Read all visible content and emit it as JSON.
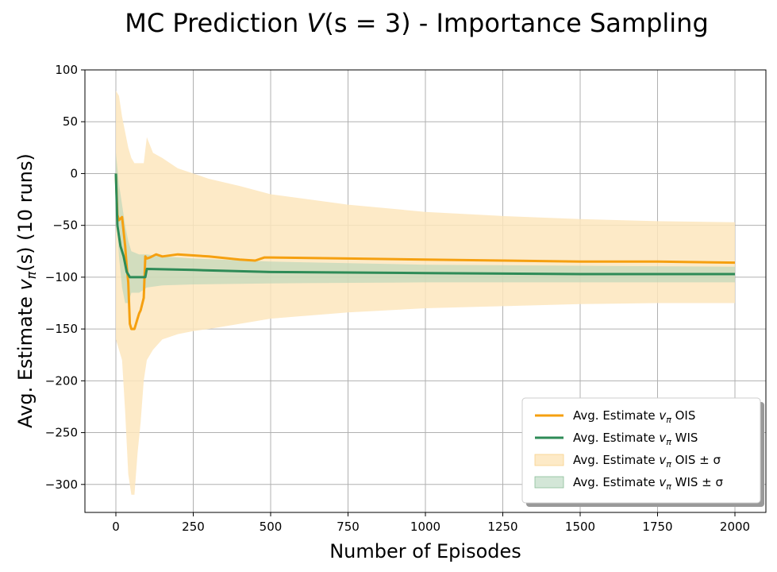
{
  "chart_data": {
    "type": "line",
    "title_parts": {
      "pre": "MC Prediction ",
      "var": "V",
      "args": "(s = 3)",
      "post": " - Importance Sampling"
    },
    "xlabel": "Number of Episodes",
    "ylabel_parts": {
      "pre": "Avg. Estimate ",
      "var": "v",
      "sub": "π",
      "post": "(s) (10 runs)"
    },
    "xlim": [
      -100,
      2100
    ],
    "ylim": [
      -327,
      100
    ],
    "x_ticks": [
      0,
      250,
      500,
      750,
      1000,
      1250,
      1500,
      1750,
      2000
    ],
    "x_tick_labels": [
      "0",
      "250",
      "500",
      "750",
      "1000",
      "1250",
      "1500",
      "1750",
      "2000"
    ],
    "y_ticks": [
      100,
      50,
      0,
      -50,
      -100,
      -150,
      -200,
      -250,
      -300
    ],
    "y_tick_labels": [
      "100",
      "50",
      "0",
      "−50",
      "−100",
      "−150",
      "−200",
      "−250",
      "−300"
    ],
    "grid": true,
    "legend_position": "lower-right",
    "colors": {
      "ois": "#f5a010",
      "wis": "#2e8b57",
      "ois_band": "#fde6bd",
      "wis_band": "#aed2b6"
    },
    "series": [
      {
        "name": "Avg. Estimate v_π OIS",
        "legend": {
          "pre": "Avg. Estimate ",
          "var": "v",
          "sub": "π",
          "post": " OIS"
        },
        "kind": "line",
        "x": [
          0,
          5,
          10,
          20,
          30,
          35,
          40,
          45,
          50,
          60,
          70,
          75,
          80,
          90,
          95,
          100,
          110,
          130,
          150,
          200,
          250,
          300,
          400,
          450,
          480,
          500,
          750,
          1000,
          1250,
          1500,
          1750,
          2000
        ],
        "y": [
          0,
          -40,
          -45,
          -42,
          -70,
          -90,
          -105,
          -145,
          -150,
          -150,
          -140,
          -135,
          -132,
          -120,
          -80,
          -82,
          -81,
          -78,
          -80,
          -78,
          -79,
          -80,
          -83,
          -84,
          -81,
          -81,
          -82,
          -83,
          -84,
          -85,
          -85,
          -86
        ]
      },
      {
        "name": "Avg. Estimate v_π WIS",
        "legend": {
          "pre": "Avg. Estimate ",
          "var": "v",
          "sub": "π",
          "post": " WIS"
        },
        "kind": "line",
        "x": [
          0,
          5,
          15,
          25,
          35,
          45,
          55,
          95,
          100,
          250,
          500,
          1000,
          1500,
          2000
        ],
        "y": [
          0,
          -50,
          -70,
          -80,
          -95,
          -100,
          -100,
          -100,
          -92,
          -93,
          -95,
          -96,
          -97,
          -97
        ]
      },
      {
        "name": "Avg. Estimate v_π OIS ± σ",
        "legend": {
          "pre": "Avg. Estimate ",
          "var": "v",
          "sub": "π",
          "post": " OIS ± σ"
        },
        "kind": "band",
        "x": [
          0,
          10,
          20,
          30,
          40,
          50,
          60,
          70,
          80,
          90,
          100,
          120,
          150,
          200,
          250,
          300,
          400,
          500,
          750,
          1000,
          1250,
          1500,
          1750,
          2000
        ],
        "upper": [
          80,
          75,
          55,
          40,
          25,
          15,
          10,
          10,
          10,
          10,
          35,
          20,
          15,
          5,
          0,
          -5,
          -12,
          -20,
          -30,
          -37,
          -41,
          -44,
          -46,
          -47
        ],
        "lower": [
          -160,
          -170,
          -180,
          -230,
          -290,
          -310,
          -310,
          -270,
          -240,
          -200,
          -180,
          -170,
          -160,
          -155,
          -152,
          -150,
          -145,
          -140,
          -134,
          -130,
          -128,
          -126,
          -125,
          -125
        ]
      },
      {
        "name": "Avg. Estimate v_π WIS ± σ",
        "legend": {
          "pre": "Avg. Estimate ",
          "var": "v",
          "sub": "π",
          "post": " WIS ± σ"
        },
        "kind": "band",
        "x": [
          0,
          10,
          20,
          30,
          40,
          50,
          75,
          100,
          150,
          250,
          500,
          1000,
          1500,
          2000
        ],
        "upper": [
          20,
          -10,
          -30,
          -50,
          -65,
          -75,
          -78,
          -78,
          -80,
          -82,
          -85,
          -88,
          -89,
          -90
        ],
        "lower": [
          -30,
          -80,
          -110,
          -125,
          -125,
          -115,
          -115,
          -110,
          -108,
          -107,
          -106,
          -105,
          -105,
          -105
        ]
      }
    ]
  }
}
